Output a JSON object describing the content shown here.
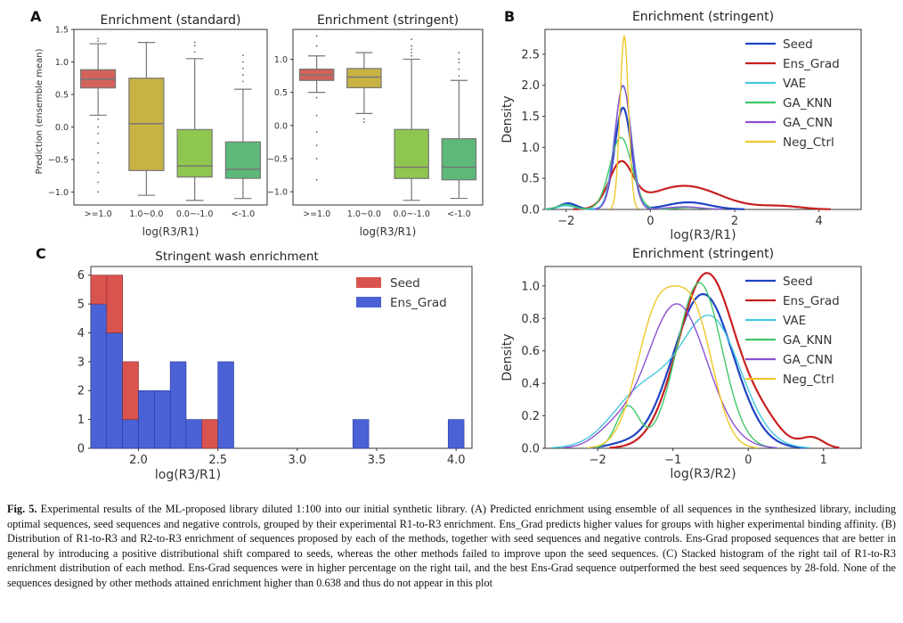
{
  "panels": {
    "A": {
      "label": "A",
      "ylabel": "Prediction (ensemble mean)",
      "xlabel": "log(R3/R1)",
      "left_title": "Enrichment (standard)",
      "right_title": "Enrichment (stringent)"
    },
    "B": {
      "label": "B"
    },
    "C": {
      "label": "C"
    },
    "D": {
      "label": ""
    }
  },
  "caption": {
    "fig_label": "Fig. 5.",
    "text": " Experimental results of the ML-proposed library diluted 1:100 into our initial synthetic library. (A) Predicted enrichment using ensemble of all sequences in the synthesized library, including optimal sequences, seed sequences and negative controls, grouped by their experimental R1-to-R3 enrichment. Ens_Grad predicts higher values for groups with higher experimental binding affinity. (B) Distribution of R1-to-R3 and R2-to-R3 enrichment of sequences proposed by each of the methods, together with seed sequences and negative controls. Ens-Grad proposed sequences that are better in general by introducing a positive distributional shift compared to seeds, whereas the other methods failed to improve upon the seed sequences. (C) Stacked histogram of the right tail of R1-to-R3 enrichment distribution of each method. Ens-Grad sequences were in higher percentage on the right tail, and the best Ens-Grad sequence outperformed the best seed sequences by 28-fold. None of the sequences designed by other methods attained enrichment higher than 0.638 and thus do not appear in this plot"
  },
  "chart_data": [
    {
      "id": "A-standard",
      "type": "box",
      "title": "Enrichment (standard)",
      "xlabel": "log(R3/R1)",
      "ylabel": "Prediction (ensemble mean)",
      "categories": [
        ">=1.0",
        "1.0~0.0",
        "0.0~-1.0",
        "<-1.0"
      ],
      "colors": [
        "#d2625a",
        "#c9b244",
        "#8fc64f",
        "#5cb97a"
      ],
      "boxes": [
        {
          "whislo": 0.18,
          "q1": 0.6,
          "med": 0.73,
          "q3": 0.88,
          "whishi": 1.28
        },
        {
          "whislo": -1.05,
          "q1": -0.67,
          "med": 0.05,
          "q3": 0.75,
          "whishi": 1.3
        },
        {
          "whislo": -1.13,
          "q1": -0.77,
          "med": -0.6,
          "q3": -0.04,
          "whishi": 1.05
        },
        {
          "whislo": -1.1,
          "q1": -0.79,
          "med": -0.65,
          "q3": -0.23,
          "whishi": 0.58
        }
      ],
      "outliers": [
        [
          0.12,
          0.0,
          -0.1,
          -0.25,
          -0.4,
          -0.55,
          -0.7,
          -0.85,
          -1.0,
          1.32,
          1.36
        ],
        [],
        [
          1.15,
          1.25,
          1.3
        ],
        [
          0.7,
          0.8,
          0.9,
          1.0,
          1.1
        ]
      ],
      "ylim": [
        -1.2,
        1.5
      ],
      "yticks": [
        -1.0,
        -0.5,
        0.0,
        0.5,
        1.0,
        1.5
      ]
    },
    {
      "id": "A-stringent",
      "type": "box",
      "title": "Enrichment (stringent)",
      "xlabel": "log(R3/R1)",
      "ylabel": "",
      "categories": [
        ">=1.0",
        "1.0~0.0",
        "0.0~-1.0",
        "<-1.0"
      ],
      "colors": [
        "#d2625a",
        "#c9b244",
        "#8fc64f",
        "#5cb97a"
      ],
      "boxes": [
        {
          "whislo": 0.5,
          "q1": 0.68,
          "med": 0.76,
          "q3": 0.85,
          "whishi": 1.05
        },
        {
          "whislo": 0.18,
          "q1": 0.57,
          "med": 0.73,
          "q3": 0.86,
          "whishi": 1.1
        },
        {
          "whislo": -1.13,
          "q1": -0.8,
          "med": -0.63,
          "q3": -0.06,
          "whishi": 1.0
        },
        {
          "whislo": -1.1,
          "q1": -0.82,
          "med": -0.63,
          "q3": -0.2,
          "whishi": 0.68
        }
      ],
      "outliers": [
        [
          1.2,
          1.35,
          0.42,
          0.15,
          -0.1,
          -0.3,
          -0.5,
          -0.82
        ],
        [
          0.1,
          0.05
        ],
        [
          1.05,
          1.1,
          1.15,
          1.2,
          1.3
        ],
        [
          0.75,
          0.85,
          0.95,
          1.0,
          1.1
        ]
      ],
      "ylim": [
        -1.2,
        1.45
      ],
      "yticks": [
        -1.0,
        -0.5,
        0.0,
        0.5,
        1.0
      ]
    },
    {
      "id": "B-top",
      "type": "line",
      "title": "Enrichment (stringent)",
      "xlabel": "log(R3/R1)",
      "ylabel": "Density",
      "xlim": [
        -2.5,
        5.0
      ],
      "ylim": [
        0,
        2.9
      ],
      "xticks": [
        -2,
        0,
        2,
        4
      ],
      "yticks": [
        0.0,
        0.5,
        1.0,
        1.5,
        2.0,
        2.5
      ],
      "legend_position": "top-right",
      "series": [
        {
          "name": "Seed",
          "color": "#1f44c4",
          "components": [
            [
              1.0,
              -0.65,
              0.2
            ],
            [
              0.06,
              -1.95,
              0.2
            ],
            [
              0.07,
              0.9,
              0.5
            ]
          ]
        },
        {
          "name": "Ens_Grad",
          "color": "#c82020",
          "components": [
            [
              0.55,
              -0.7,
              0.28
            ],
            [
              0.3,
              0.8,
              0.85
            ],
            [
              0.04,
              3.1,
              0.5
            ]
          ]
        },
        {
          "name": "VAE",
          "color": "#44c8de",
          "components": [
            [
              1.0,
              -0.65,
              0.2
            ],
            [
              0.03,
              -2.0,
              0.2
            ]
          ]
        },
        {
          "name": "GA_KNN",
          "color": "#3fc86a",
          "components": [
            [
              0.75,
              -0.7,
              0.26
            ],
            [
              0.05,
              -2.0,
              0.2
            ],
            [
              0.02,
              0.9,
              0.3
            ]
          ]
        },
        {
          "name": "GA_CNN",
          "color": "#8d4fd2",
          "components": [
            [
              0.95,
              -0.65,
              0.19
            ],
            [
              0.02,
              0.8,
              0.4
            ]
          ]
        },
        {
          "name": "Neg_Ctrl",
          "color": "#f0c72a",
          "components": [
            [
              0.72,
              -0.62,
              0.1
            ]
          ]
        }
      ],
      "peaks": [
        1.64,
        0.78,
        1.98,
        1.16,
        2.0,
        2.8
      ]
    },
    {
      "id": "C",
      "type": "bar",
      "subtype": "stacked-histogram",
      "title": "Stringent wash enrichment",
      "xlabel": "log(R3/R1)",
      "ylabel": "",
      "xlim": [
        1.7,
        4.1
      ],
      "ylim": [
        0,
        6.3
      ],
      "xticks": [
        2.0,
        2.5,
        3.0,
        3.5,
        4.0
      ],
      "yticks": [
        0,
        1,
        2,
        3,
        4,
        5,
        6
      ],
      "legend_position": "top-right",
      "bin_width": 0.1,
      "series": [
        {
          "name": "Ens_Grad",
          "color": "#4a62d6",
          "bins": [
            [
              1.7,
              5
            ],
            [
              1.8,
              4
            ],
            [
              1.9,
              1
            ],
            [
              2.0,
              2
            ],
            [
              2.1,
              2
            ],
            [
              2.2,
              3
            ],
            [
              2.3,
              1
            ],
            [
              2.4,
              0
            ],
            [
              2.5,
              3
            ],
            [
              3.35,
              1
            ],
            [
              3.95,
              1
            ]
          ]
        },
        {
          "name": "Seed",
          "color": "#d9544f",
          "bins": [
            [
              1.7,
              1
            ],
            [
              1.8,
              2
            ],
            [
              1.9,
              2
            ],
            [
              2.0,
              0
            ],
            [
              2.1,
              0
            ],
            [
              2.2,
              0
            ],
            [
              2.3,
              0
            ],
            [
              2.4,
              1
            ],
            [
              2.5,
              0
            ],
            [
              3.35,
              0
            ],
            [
              3.95,
              0
            ]
          ]
        }
      ]
    },
    {
      "id": "D",
      "type": "line",
      "title": "Enrichment (stringent)",
      "xlabel": "log(R3/R2)",
      "ylabel": "Density",
      "xlim": [
        -2.7,
        1.5
      ],
      "ylim": [
        0,
        1.12
      ],
      "xticks": [
        -2,
        -1,
        0,
        1
      ],
      "yticks": [
        0.0,
        0.2,
        0.4,
        0.6,
        0.8,
        1.0
      ],
      "legend_position": "top-right",
      "series": [
        {
          "name": "Seed",
          "color": "#1f44c4",
          "components": [
            [
              1.0,
              -0.6,
              0.4
            ],
            [
              0.02,
              -1.7,
              0.2
            ]
          ]
        },
        {
          "name": "Ens_Grad",
          "color": "#c82020",
          "components": [
            [
              1.0,
              -0.55,
              0.38
            ],
            [
              0.12,
              0.2,
              0.25
            ],
            [
              0.06,
              0.85,
              0.15
            ]
          ]
        },
        {
          "name": "VAE",
          "color": "#44c8de",
          "components": [
            [
              0.8,
              -0.5,
              0.4
            ],
            [
              0.35,
              -1.4,
              0.4
            ]
          ]
        },
        {
          "name": "GA_KNN",
          "color": "#3fc86a",
          "components": [
            [
              1.0,
              -0.65,
              0.3
            ],
            [
              0.25,
              -1.6,
              0.15
            ]
          ]
        },
        {
          "name": "GA_CNN",
          "color": "#8d4fd2",
          "components": [
            [
              1.0,
              -0.95,
              0.4
            ],
            [
              0.1,
              -1.8,
              0.25
            ]
          ]
        },
        {
          "name": "Neg_Ctrl",
          "color": "#f0c72a",
          "components": [
            [
              0.75,
              -1.2,
              0.28
            ],
            [
              0.65,
              -0.7,
              0.25
            ]
          ]
        }
      ],
      "peaks": [
        0.95,
        1.08,
        0.82,
        1.02,
        0.89,
        1.0
      ]
    }
  ]
}
